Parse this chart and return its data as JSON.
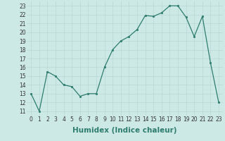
{
  "x": [
    0,
    1,
    2,
    3,
    4,
    5,
    6,
    7,
    8,
    9,
    10,
    11,
    12,
    13,
    14,
    15,
    16,
    17,
    18,
    19,
    20,
    21,
    22,
    23
  ],
  "y": [
    13,
    11,
    15.5,
    15,
    14,
    13.8,
    12.7,
    13,
    13,
    16,
    18,
    19,
    19.5,
    20.3,
    21.9,
    21.8,
    22.2,
    23,
    23,
    21.7,
    19.5,
    21.8,
    16.5,
    12
  ],
  "xlabel": "Humidex (Indice chaleur)",
  "xlim": [
    -0.5,
    23.5
  ],
  "ylim": [
    10.5,
    23.5
  ],
  "yticks": [
    11,
    12,
    13,
    14,
    15,
    16,
    17,
    18,
    19,
    20,
    21,
    22,
    23
  ],
  "xticks": [
    0,
    1,
    2,
    3,
    4,
    5,
    6,
    7,
    8,
    9,
    10,
    11,
    12,
    13,
    14,
    15,
    16,
    17,
    18,
    19,
    20,
    21,
    22,
    23
  ],
  "line_color": "#2e7d6e",
  "marker": "s",
  "marker_size": 2.0,
  "bg_color": "#cce9e5",
  "grid_color": "#b8d8d4",
  "tick_label_fontsize": 5.5,
  "xlabel_fontsize": 7.5
}
